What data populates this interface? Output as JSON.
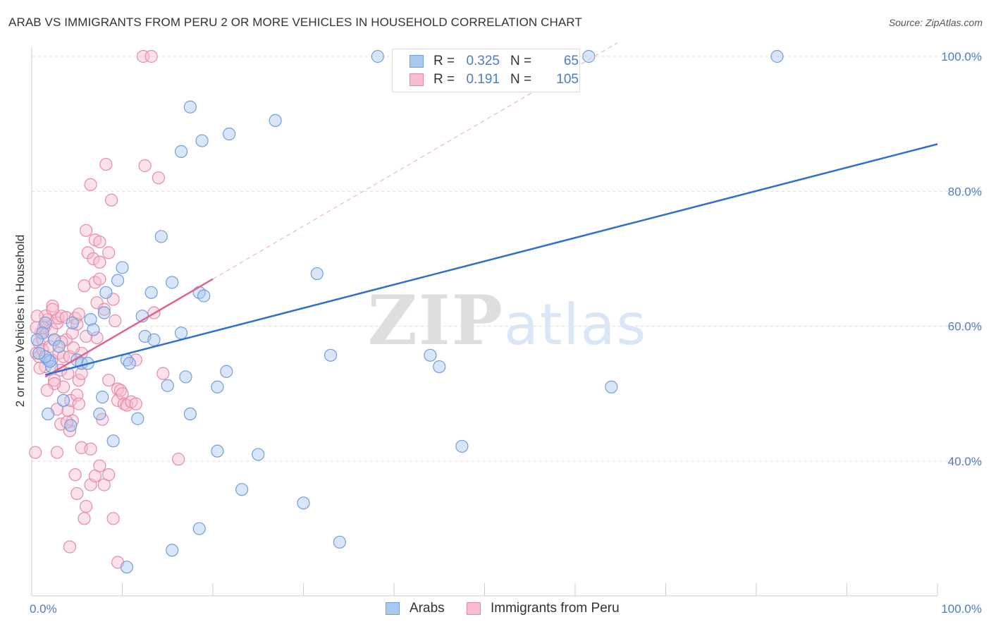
{
  "title": "ARAB VS IMMIGRANTS FROM PERU 2 OR MORE VEHICLES IN HOUSEHOLD CORRELATION CHART",
  "source": "Source: ZipAtlas.com",
  "watermark": "ZIPatlas",
  "colors": {
    "arabs_fill": "#a8c8f0",
    "arabs_stroke": "#6f9fdc",
    "arabs_line": "#2f6fcd",
    "peru_fill": "#f7bcd0",
    "peru_stroke": "#e68aa8",
    "peru_line": "#e0648f",
    "axis_text": "#4a7cc7",
    "grid": "#dddddd"
  },
  "legend": {
    "rows": [
      {
        "label": "R =",
        "r": "0.325",
        "n_label": "N =",
        "n": "65"
      },
      {
        "label": "R =",
        "r": "0.191",
        "n_label": "N =",
        "n": "105"
      }
    ]
  },
  "bottom_legend": {
    "arabs": "Arabs",
    "peru": "Immigrants from Peru"
  },
  "chart_data": {
    "type": "scatter",
    "title": "ARAB VS IMMIGRANTS FROM PERU 2 OR MORE VEHICLES IN HOUSEHOLD CORRELATION CHART",
    "xlabel": "",
    "ylabel": "2 or more Vehicles in Household",
    "xlim": [
      0,
      100
    ],
    "ylim": [
      20,
      102
    ],
    "x_tick_labels": [
      "0.0%",
      "100.0%"
    ],
    "y_ticks": [
      40,
      60,
      80,
      100
    ],
    "y_tick_labels": [
      "40.0%",
      "60.0%",
      "80.0%",
      "100.0%"
    ],
    "grid": true,
    "series": [
      {
        "name": "Arabs",
        "R": 0.325,
        "N": 65,
        "trend": {
          "x": [
            1.5,
            100
          ],
          "y": [
            52.8,
            87
          ]
        },
        "points": [
          [
            1.5,
            60.5
          ],
          [
            1.2,
            59
          ],
          [
            1.8,
            55
          ],
          [
            2.5,
            58
          ],
          [
            2.2,
            54
          ],
          [
            1.8,
            47
          ],
          [
            5,
            55
          ],
          [
            5.5,
            54.5
          ],
          [
            4.5,
            60.5
          ],
          [
            6.5,
            61
          ],
          [
            6.8,
            59.5
          ],
          [
            7.5,
            47
          ],
          [
            8,
            62
          ],
          [
            8.2,
            65
          ],
          [
            9.5,
            66.8
          ],
          [
            10,
            68.7
          ],
          [
            10.5,
            55
          ],
          [
            10.8,
            54.5
          ],
          [
            9,
            43
          ],
          [
            11.7,
            46.3
          ],
          [
            12.2,
            61.5
          ],
          [
            12.5,
            58.5
          ],
          [
            13.2,
            65
          ],
          [
            13.5,
            58
          ],
          [
            14.3,
            73.3
          ],
          [
            15,
            51.2
          ],
          [
            15.5,
            26.8
          ],
          [
            15.5,
            66.5
          ],
          [
            16.5,
            85.9
          ],
          [
            16.5,
            59
          ],
          [
            17,
            52.5
          ],
          [
            17.5,
            47
          ],
          [
            17.5,
            92.5
          ],
          [
            18.5,
            30
          ],
          [
            18.8,
            87.5
          ],
          [
            18.5,
            65
          ],
          [
            19,
            64.5
          ],
          [
            20.5,
            41.5
          ],
          [
            20.5,
            51
          ],
          [
            21.5,
            53.3
          ],
          [
            21.8,
            88.5
          ],
          [
            23.2,
            35.8
          ],
          [
            25,
            41
          ],
          [
            26.9,
            90.5
          ],
          [
            30,
            33.8
          ],
          [
            31.5,
            67.8
          ],
          [
            33,
            55.7
          ],
          [
            34,
            28
          ],
          [
            38.2,
            100
          ],
          [
            44,
            55.7
          ],
          [
            45,
            54
          ],
          [
            47.5,
            42.2
          ],
          [
            61.5,
            100
          ],
          [
            64,
            51
          ],
          [
            82.3,
            100
          ],
          [
            10.5,
            24.3
          ],
          [
            4.3,
            45.3
          ],
          [
            2,
            54.8
          ],
          [
            3,
            57
          ],
          [
            6.2,
            54.5
          ],
          [
            1.5,
            55.5
          ],
          [
            3.5,
            49
          ],
          [
            7.8,
            49.5
          ],
          [
            0.8,
            56
          ],
          [
            0.6,
            58
          ]
        ]
      },
      {
        "name": "Immigrants from Peru",
        "R": 0.191,
        "N": 105,
        "trend": {
          "x": [
            1.5,
            20
          ],
          "y": [
            52.5,
            67
          ]
        },
        "points": [
          [
            0.5,
            56
          ],
          [
            0.8,
            57.5
          ],
          [
            0.8,
            55.5
          ],
          [
            1,
            59
          ],
          [
            1.2,
            58
          ],
          [
            1.2,
            56.5
          ],
          [
            1.5,
            60
          ],
          [
            1.5,
            54
          ],
          [
            1.8,
            61
          ],
          [
            2,
            57
          ],
          [
            2.2,
            55
          ],
          [
            2.2,
            59.5
          ],
          [
            2.5,
            52
          ],
          [
            2.5,
            58
          ],
          [
            2.8,
            60.5
          ],
          [
            2.9,
            61.2
          ],
          [
            3,
            56
          ],
          [
            3.2,
            53.5
          ],
          [
            3.3,
            61.5
          ],
          [
            3.5,
            55.5
          ],
          [
            3.5,
            51
          ],
          [
            3.8,
            58
          ],
          [
            3.8,
            61.3
          ],
          [
            4,
            53
          ],
          [
            4,
            47.5
          ],
          [
            4.2,
            55.5
          ],
          [
            4.3,
            49
          ],
          [
            4.5,
            46
          ],
          [
            4.5,
            59
          ],
          [
            4.8,
            61.2
          ],
          [
            5,
            60.3
          ],
          [
            5,
            49.8
          ],
          [
            5.2,
            48.5
          ],
          [
            5.2,
            52
          ],
          [
            5.5,
            53
          ],
          [
            5.5,
            56
          ],
          [
            5.8,
            66
          ],
          [
            6,
            74.2
          ],
          [
            6.2,
            70.9
          ],
          [
            6.5,
            81
          ],
          [
            6.8,
            70
          ],
          [
            7,
            72.8
          ],
          [
            7,
            66.5
          ],
          [
            7.2,
            63.5
          ],
          [
            7.5,
            72.5
          ],
          [
            7.5,
            69.5
          ],
          [
            7.5,
            67
          ],
          [
            8,
            62.5
          ],
          [
            8.2,
            84
          ],
          [
            8.5,
            70.9
          ],
          [
            8.8,
            78.7
          ],
          [
            9,
            64
          ],
          [
            9.2,
            60.8
          ],
          [
            9.5,
            50.7
          ],
          [
            9.5,
            49
          ],
          [
            9.8,
            50.5
          ],
          [
            10,
            50
          ],
          [
            10.2,
            48.5
          ],
          [
            10.5,
            48.3
          ],
          [
            11,
            48.8
          ],
          [
            11.5,
            48.5
          ],
          [
            12.5,
            83.8
          ],
          [
            13.5,
            62
          ],
          [
            14,
            82
          ],
          [
            14.5,
            53
          ],
          [
            16.2,
            40.3
          ],
          [
            12.3,
            100
          ],
          [
            13.2,
            100
          ],
          [
            0.4,
            41.3
          ],
          [
            2.8,
            41.3
          ],
          [
            3.2,
            45.5
          ],
          [
            4.2,
            44.5
          ],
          [
            4.8,
            38
          ],
          [
            5,
            35.2
          ],
          [
            5.5,
            42
          ],
          [
            5.8,
            31.5
          ],
          [
            6,
            33.3
          ],
          [
            6.5,
            36.5
          ],
          [
            7,
            37.8
          ],
          [
            7.5,
            39.3
          ],
          [
            8,
            36.5
          ],
          [
            8.5,
            38
          ],
          [
            9,
            31.5
          ],
          [
            9.5,
            25
          ],
          [
            4.2,
            27.3
          ],
          [
            6.5,
            41.8
          ],
          [
            5.2,
            61.8
          ],
          [
            7.2,
            58.3
          ],
          [
            3.3,
            57.7
          ],
          [
            1.5,
            61.5
          ],
          [
            0.6,
            61.5
          ],
          [
            1.3,
            59.8
          ],
          [
            2.3,
            63
          ],
          [
            2.5,
            51.5
          ],
          [
            4.6,
            56.8
          ],
          [
            6,
            58.5
          ],
          [
            0.9,
            53.8
          ],
          [
            1.7,
            50.5
          ],
          [
            2.8,
            47.7
          ],
          [
            3.9,
            45.8
          ],
          [
            7.8,
            46.2
          ],
          [
            8.5,
            52
          ],
          [
            11.5,
            55
          ],
          [
            0.5,
            59.8
          ],
          [
            2.3,
            62.5
          ]
        ]
      }
    ]
  }
}
